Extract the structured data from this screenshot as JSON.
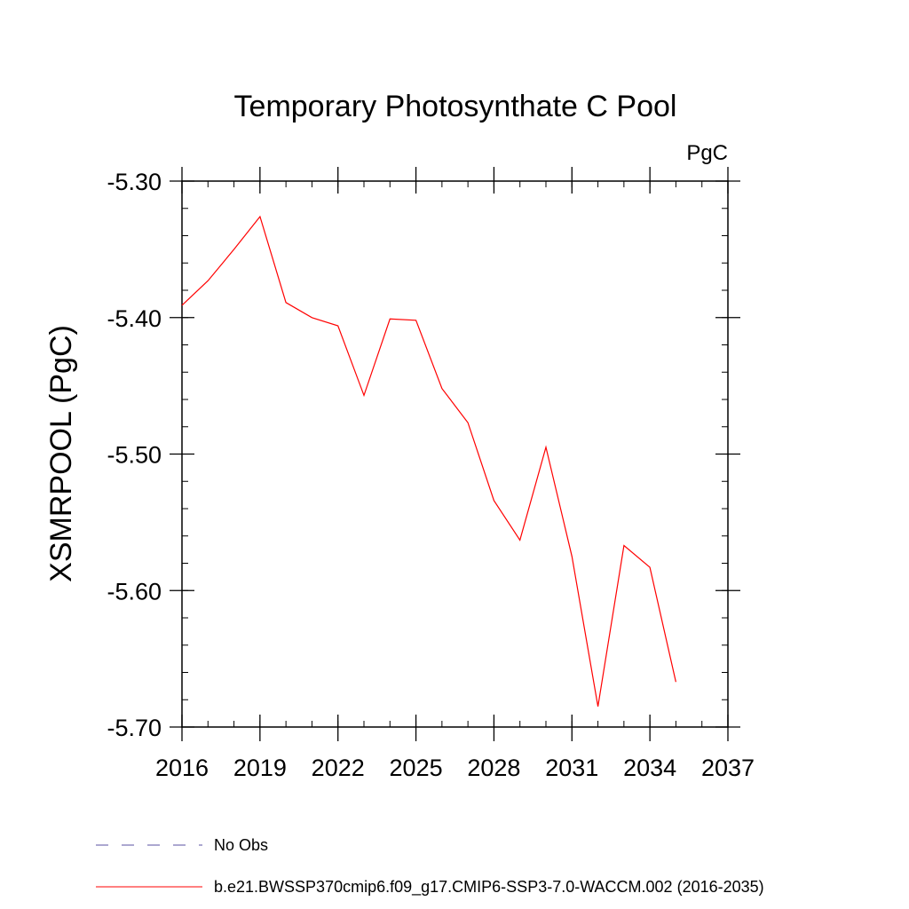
{
  "chart_data": {
    "type": "line",
    "title": "Temporary Photosynthate C Pool",
    "units": "PgC",
    "xlabel": "",
    "ylabel": "XSMRPOOL  (PgC)",
    "xlim": [
      2016,
      2037
    ],
    "ylim": [
      -5.7,
      -5.3
    ],
    "x_ticks": [
      2016,
      2019,
      2022,
      2025,
      2028,
      2031,
      2034,
      2037
    ],
    "x_tick_labels": [
      "2016",
      "2019",
      "2022",
      "2025",
      "2028",
      "2031",
      "2034",
      "2037"
    ],
    "x_minor_step": 1,
    "y_ticks": [
      -5.7,
      -5.6,
      -5.5,
      -5.4,
      -5.3
    ],
    "y_tick_labels": [
      "-5.70",
      "-5.60",
      "-5.50",
      "-5.40",
      "-5.30"
    ],
    "y_minor_step": 0.02,
    "grid": false,
    "legend_position": "bottom-left",
    "series": [
      {
        "name": "b.e21.BWSSP370cmip6.f09_g17.CMIP6-SSP3-7.0-WACCM.002 (2016-2035)",
        "color": "#ff0000",
        "style": "solid",
        "x": [
          2016,
          2017,
          2018,
          2019,
          2020,
          2021,
          2022,
          2023,
          2024,
          2025,
          2026,
          2027,
          2028,
          2029,
          2030,
          2031,
          2032,
          2033,
          2034,
          2035
        ],
        "values": [
          -5.391,
          -5.373,
          -5.35,
          -5.326,
          -5.389,
          -5.4,
          -5.406,
          -5.457,
          -5.401,
          -5.402,
          -5.452,
          -5.477,
          -5.534,
          -5.563,
          -5.495,
          -5.575,
          -5.685,
          -5.567,
          -5.583,
          -5.667
        ]
      }
    ],
    "legend": [
      {
        "label": "No Obs",
        "color": "#5a50a0",
        "style": "dashed"
      },
      {
        "label": "b.e21.BWSSP370cmip6.f09_g17.CMIP6-SSP3-7.0-WACCM.002 (2016-2035)",
        "color": "#ff0000",
        "style": "solid"
      }
    ]
  }
}
